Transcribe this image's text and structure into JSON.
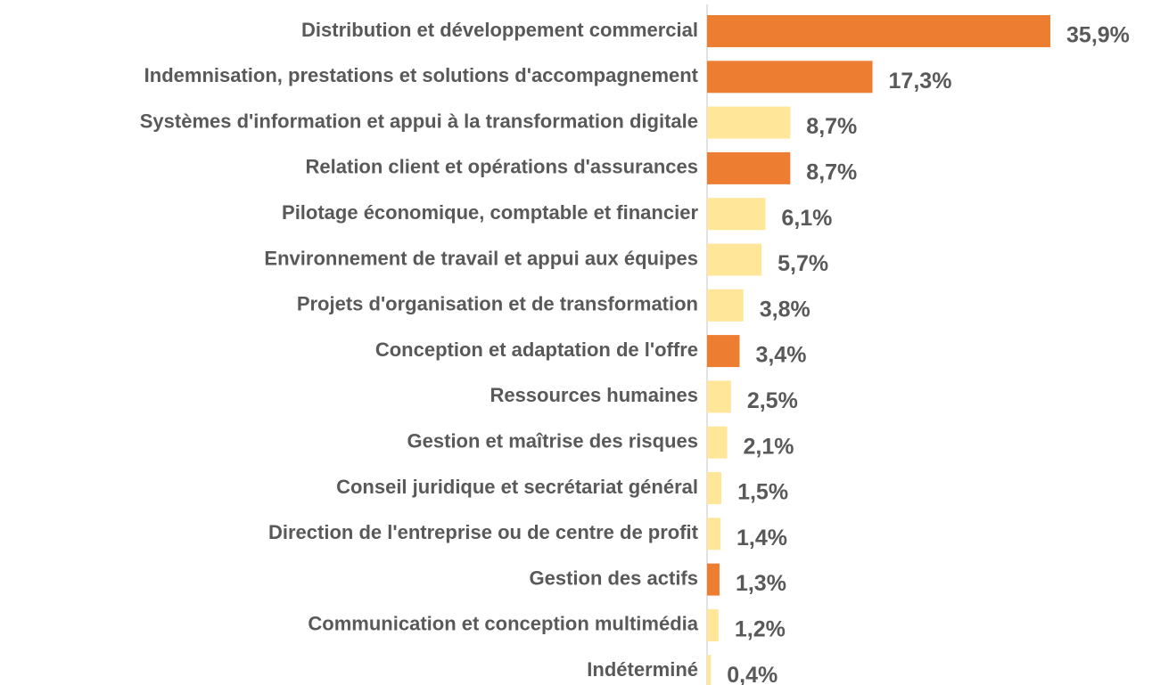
{
  "chart_data": {
    "type": "barh",
    "categories": [
      "Distribution et développement commercial",
      "Indemnisation, prestations et solutions d'accompagnement",
      "Systèmes d'information et appui à la transformation digitale",
      "Relation client et opérations d'assurances",
      "Pilotage économique, comptable et financier",
      "Environnement de travail et appui aux équipes",
      "Projets d'organisation et de transformation",
      "Conception et adaptation de l'offre",
      "Ressources humaines",
      "Gestion et maîtrise des risques",
      "Conseil juridique et secrétariat général",
      "Direction de l'entreprise ou de centre de profit",
      "Gestion des actifs",
      "Communication et conception multimédia",
      "Indéterminé"
    ],
    "values": [
      35.9,
      17.3,
      8.7,
      8.7,
      6.1,
      5.7,
      3.8,
      3.4,
      2.5,
      2.1,
      1.5,
      1.4,
      1.3,
      1.2,
      0.4
    ],
    "value_labels": [
      "35,9%",
      "17,3%",
      "8,7%",
      "8,7%",
      "6,1%",
      "5,7%",
      "3,8%",
      "3,4%",
      "2,5%",
      "2,1%",
      "1,5%",
      "1,4%",
      "1,3%",
      "1,2%",
      "0,4%"
    ],
    "colors": [
      "#ED7D31",
      "#ED7D31",
      "#FFE699",
      "#ED7D31",
      "#FFE699",
      "#FFE699",
      "#FFE699",
      "#ED7D31",
      "#FFE699",
      "#FFE699",
      "#FFE699",
      "#FFE699",
      "#ED7D31",
      "#FFE699",
      "#FFE699"
    ],
    "xlim": [
      0,
      40
    ]
  }
}
